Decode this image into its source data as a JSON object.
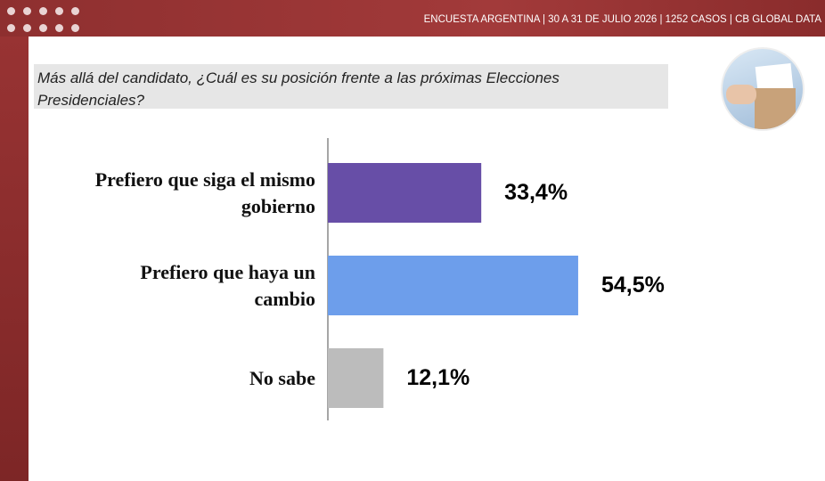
{
  "header": {
    "text": "ENCUESTA ARGENTINA | 30 A 31 DE JULIO 2026 | 1252 CASOS | CB GLOBAL DATA"
  },
  "question": "Más allá del candidato, ¿Cuál es su posición frente a las próximas Elecciones Presidenciales?",
  "chart_data": {
    "type": "bar",
    "orientation": "horizontal",
    "categories": [
      "Prefiero que siga el mismo gobierno",
      "Prefiero que haya un cambio",
      "No sabe"
    ],
    "values": [
      33.4,
      54.5,
      12.1
    ],
    "value_labels": [
      "33,4%",
      "54,5%",
      "12,1%"
    ],
    "colors": [
      "#674ea7",
      "#6d9eeb",
      "#bcbcbc"
    ]
  }
}
